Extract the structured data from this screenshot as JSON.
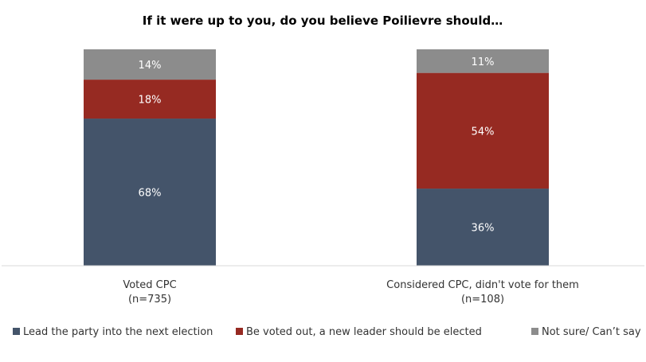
{
  "chart_data": {
    "type": "bar",
    "stacked": true,
    "percent_stacked": true,
    "title": "If it were up to you, do you believe Poilievre should…",
    "xlabel": "",
    "ylabel": "",
    "ylim": [
      0,
      100
    ],
    "grid": false,
    "legend_position": "bottom",
    "categories": [
      [
        "Voted CPC",
        "(n=735)"
      ],
      [
        "Considered CPC, didn't vote for them",
        "(n=108)"
      ]
    ],
    "series": [
      {
        "name": "Lead the party into the next election",
        "values": [
          68,
          36
        ],
        "labels": [
          "68%",
          "36%"
        ],
        "color": "#44546a"
      },
      {
        "name": "Be voted out, a new leader should be elected",
        "values": [
          18,
          54
        ],
        "labels": [
          "18%",
          "54%"
        ],
        "color": "#962a22"
      },
      {
        "name": "Not sure/ Can’t say",
        "values": [
          14,
          11
        ],
        "labels": [
          "14%",
          "11%"
        ],
        "color": "#8c8c8c"
      }
    ]
  }
}
